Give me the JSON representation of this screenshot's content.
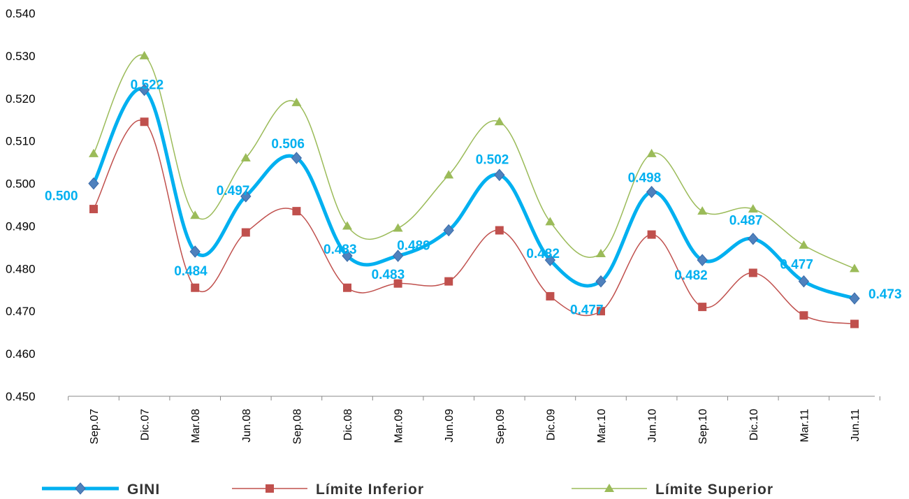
{
  "chart_data": {
    "type": "line",
    "categories": [
      "Sep.07",
      "Dic.07",
      "Mar.08",
      "Jun.08",
      "Sep.08",
      "Dic.08",
      "Mar.09",
      "Jun.09",
      "Sep.09",
      "Dic.09",
      "Mar.10",
      "Jun.10",
      "Sep.10",
      "Dic.10",
      "Mar.11",
      "Jun.11"
    ],
    "ylim": [
      0.45,
      0.54
    ],
    "yticks": [
      "0.450",
      "0.460",
      "0.470",
      "0.480",
      "0.490",
      "0.500",
      "0.510",
      "0.520",
      "0.530",
      "0.540"
    ],
    "grid": false,
    "legend_position": "bottom",
    "series": [
      {
        "name": "GINI",
        "color": "#00b0f0",
        "marker_color": "#4f81bd",
        "marker": "diamond",
        "values": [
          0.5,
          0.522,
          0.484,
          0.497,
          0.506,
          0.483,
          0.483,
          0.489,
          0.502,
          0.482,
          0.477,
          0.498,
          0.482,
          0.487,
          0.477,
          0.473
        ],
        "labels": [
          "0.500",
          "0.522",
          "0.484",
          "0.497",
          "0.506",
          "0.483",
          "0.483",
          "0.489",
          "0.502",
          "0.482",
          "0.477",
          "0.498",
          "0.482",
          "0.487",
          "0.477",
          "0.473"
        ]
      },
      {
        "name": "Límite Inferior",
        "color": "#c0504d",
        "marker_color": "#c0504d",
        "marker": "square",
        "values": [
          0.494,
          0.5145,
          0.4755,
          0.4885,
          0.4935,
          0.4755,
          0.4765,
          0.477,
          0.489,
          0.4735,
          0.47,
          0.488,
          0.471,
          0.479,
          0.469,
          0.467
        ]
      },
      {
        "name": "Límite Superior",
        "color": "#9bbb59",
        "marker_color": "#9bbb59",
        "marker": "triangle",
        "values": [
          0.507,
          0.53,
          0.4925,
          0.506,
          0.519,
          0.49,
          0.4895,
          0.502,
          0.5145,
          0.491,
          0.4835,
          0.507,
          0.4935,
          0.494,
          0.4855,
          0.48
        ]
      }
    ]
  }
}
